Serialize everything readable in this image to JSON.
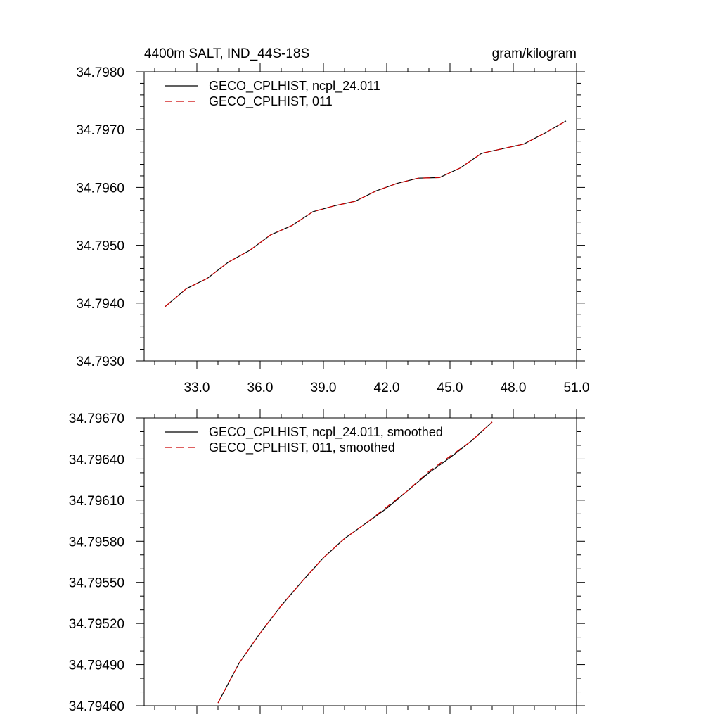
{
  "chart_data": [
    {
      "type": "line",
      "title_left": "4400m SALT, IND_44S-18S",
      "title_right": "gram/kilogram",
      "xlim": [
        30.5,
        51.0
      ],
      "ylim": [
        34.793,
        34.798
      ],
      "x_ticks": [
        33.0,
        36.0,
        39.0,
        42.0,
        45.0,
        48.0,
        51.0
      ],
      "x_tick_labels": [
        "33.0",
        "36.0",
        "39.0",
        "42.0",
        "45.0",
        "48.0",
        "51.0"
      ],
      "y_ticks": [
        34.793,
        34.794,
        34.795,
        34.796,
        34.797,
        34.798
      ],
      "y_tick_labels": [
        "34.7930",
        "34.7940",
        "34.7950",
        "34.7960",
        "34.7970",
        "34.7980"
      ],
      "legend_position": "top-left",
      "series": [
        {
          "name": "GECO_CPLHIST, ncpl_24.011",
          "color": "#000000",
          "dash": "solid",
          "x": [
            31.5,
            32.5,
            33.5,
            34.5,
            35.5,
            36.5,
            37.5,
            38.5,
            39.5,
            40.5,
            41.5,
            42.5,
            43.5,
            44.5,
            45.5,
            46.5,
            47.5,
            48.5,
            49.5,
            50.5
          ],
          "values": [
            34.79394,
            34.79425,
            34.79443,
            34.79471,
            34.79491,
            34.79518,
            34.79534,
            34.79558,
            34.79568,
            34.79576,
            34.79594,
            34.79607,
            34.79616,
            34.79617,
            34.79634,
            34.79659,
            34.79667,
            34.79675,
            34.79694,
            34.79715
          ]
        },
        {
          "name": "GECO_CPLHIST, 011",
          "color": "#cc0000",
          "dash": "dashed",
          "x": [
            31.5,
            32.5,
            33.5,
            34.5,
            35.5,
            36.5,
            37.5,
            38.5,
            39.5,
            40.5,
            41.5,
            42.5,
            43.5,
            44.5,
            45.5,
            46.5,
            47.5,
            48.5,
            49.5,
            50.5
          ],
          "values": [
            34.79394,
            34.79425,
            34.79443,
            34.79471,
            34.79491,
            34.79518,
            34.79534,
            34.79558,
            34.79568,
            34.79576,
            34.79594,
            34.79607,
            34.79616,
            34.79617,
            34.79634,
            34.79659,
            34.79667,
            34.79675,
            34.79694,
            34.79715
          ]
        }
      ]
    },
    {
      "type": "line",
      "xlim": [
        30.5,
        51.0
      ],
      "ylim": [
        34.7946,
        34.7967
      ],
      "x_ticks": [
        33.0,
        36.0,
        39.0,
        42.0,
        45.0,
        48.0,
        51.0
      ],
      "y_ticks": [
        34.7946,
        34.7949,
        34.7952,
        34.7955,
        34.7958,
        34.7961,
        34.7964,
        34.7967
      ],
      "y_tick_labels": [
        "34.79460",
        "34.79490",
        "34.79520",
        "34.79550",
        "34.79580",
        "34.79610",
        "34.79640",
        "34.79670"
      ],
      "legend_position": "top-left",
      "series": [
        {
          "name": "GECO_CPLHIST, ncpl_24.011, smoothed",
          "color": "#000000",
          "dash": "solid",
          "x": [
            34.0,
            35.0,
            36.0,
            37.0,
            38.0,
            39.0,
            40.0,
            41.0,
            42.0,
            43.0,
            44.0,
            45.0,
            46.0,
            47.0
          ],
          "values": [
            34.79462,
            34.79491,
            34.79513,
            34.79533,
            34.79551,
            34.79568,
            34.79582,
            34.79593,
            34.79604,
            34.79617,
            34.7963,
            34.79641,
            34.79653,
            34.79667
          ]
        },
        {
          "name": "GECO_CPLHIST, 011, smoothed",
          "color": "#cc0000",
          "dash": "dashed",
          "x": [
            34.0,
            35.0,
            36.0,
            37.0,
            38.0,
            39.0,
            40.0,
            41.0,
            42.0,
            43.0,
            44.0,
            45.0,
            46.0,
            47.0
          ],
          "values": [
            34.79462,
            34.79491,
            34.79513,
            34.79533,
            34.79551,
            34.79568,
            34.79582,
            34.79593,
            34.79605,
            34.79617,
            34.79631,
            34.79642,
            34.79653,
            34.79667
          ]
        }
      ]
    }
  ]
}
